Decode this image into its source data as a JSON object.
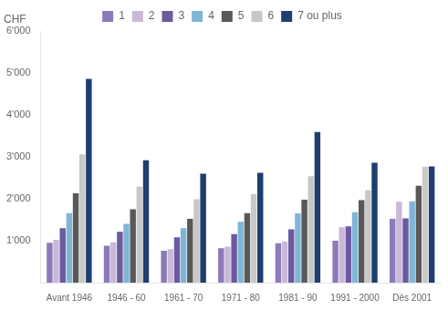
{
  "chart_data": {
    "type": "bar",
    "categories": [
      "Avant 1946",
      "1946 - 60",
      "1961 - 70",
      "1971 - 80",
      "1981 - 90",
      "1991 - 2000",
      "Dès 2001"
    ],
    "series": [
      {
        "name": "1",
        "color": "#8b7bb8",
        "values": [
          950,
          880,
          760,
          820,
          940,
          1000,
          1520
        ]
      },
      {
        "name": "2",
        "color": "#c9b8d8",
        "values": [
          1020,
          960,
          800,
          860,
          980,
          1320,
          1930
        ]
      },
      {
        "name": "3",
        "color": "#6b5a9e",
        "values": [
          1300,
          1210,
          1080,
          1160,
          1270,
          1340,
          1530
        ]
      },
      {
        "name": "4",
        "color": "#7fb5d5",
        "values": [
          1660,
          1400,
          1300,
          1450,
          1650,
          1680,
          1940
        ]
      },
      {
        "name": "5",
        "color": "#595959",
        "values": [
          2130,
          1750,
          1520,
          1660,
          1980,
          1970,
          2310
        ]
      },
      {
        "name": "6",
        "color": "#c8c8c8",
        "values": [
          3060,
          2290,
          1990,
          2110,
          2540,
          2200,
          2760
        ]
      },
      {
        "name": "7 ou plus",
        "color": "#1f3e6e",
        "values": [
          4860,
          2920,
          2600,
          2620,
          3590,
          2860,
          2770
        ]
      }
    ],
    "annotations": [
      "CHF"
    ],
    "ylim": [
      0,
      6000
    ],
    "yticks": [
      {
        "value": 0,
        "label": ""
      },
      {
        "value": 1000,
        "label": "1'000"
      },
      {
        "value": 2000,
        "label": "2'000"
      },
      {
        "value": 3000,
        "label": "3'000"
      },
      {
        "value": 4000,
        "label": "4'000"
      },
      {
        "value": 5000,
        "label": "5'000"
      },
      {
        "value": 6000,
        "label": "6'000"
      }
    ],
    "grid": false,
    "legend": "top"
  }
}
